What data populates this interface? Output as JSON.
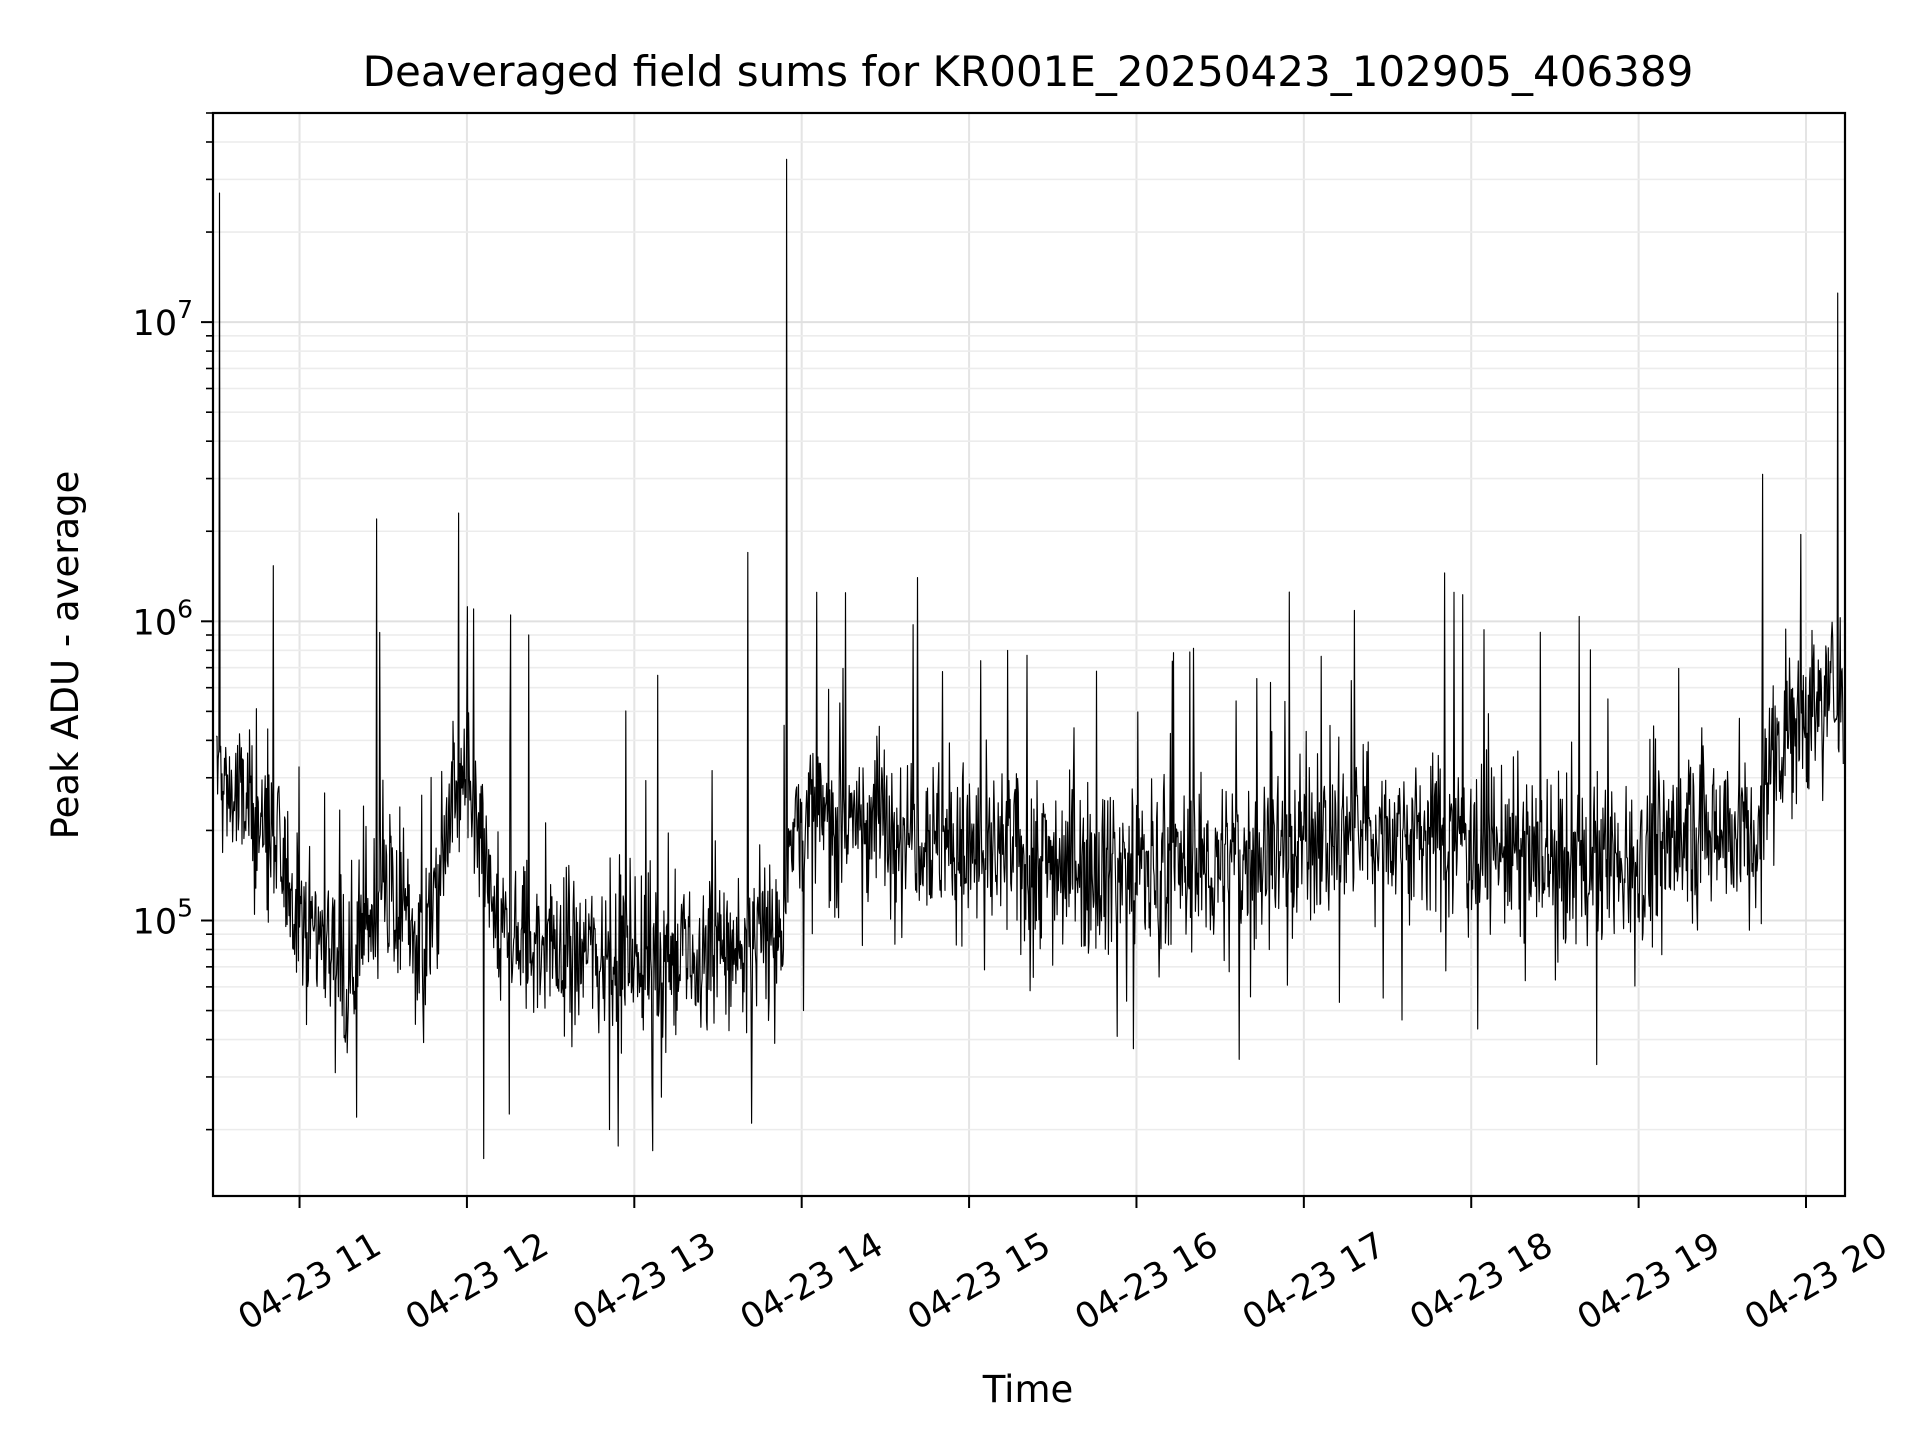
{
  "chart_data": {
    "type": "line",
    "title": "Deaveraged field sums for KR001E_20250423_102905_406389",
    "xlabel": "Time",
    "ylabel": "Peak ADU - average",
    "x_scale": "time",
    "y_scale": "log",
    "xlim": [
      "2025-04-23 10:29",
      "2025-04-23 20:14"
    ],
    "ylim": [
      12000,
      50000000
    ],
    "grid": true,
    "line_color": "#000000",
    "x_ticks": [
      {
        "label": "04-23 11",
        "hour": 11
      },
      {
        "label": "04-23 12",
        "hour": 12
      },
      {
        "label": "04-23 13",
        "hour": 13
      },
      {
        "label": "04-23 14",
        "hour": 14
      },
      {
        "label": "04-23 15",
        "hour": 15
      },
      {
        "label": "04-23 16",
        "hour": 16
      },
      {
        "label": "04-23 17",
        "hour": 17
      },
      {
        "label": "04-23 18",
        "hour": 18
      },
      {
        "label": "04-23 19",
        "hour": 19
      },
      {
        "label": "04-23 20",
        "hour": 20
      }
    ],
    "y_ticks": [
      {
        "base": "10",
        "exp": "5",
        "value": 100000
      },
      {
        "base": "10",
        "exp": "6",
        "value": 1000000
      },
      {
        "base": "10",
        "exp": "7",
        "value": 10000000
      }
    ],
    "series_profile": {
      "x_hours": [
        10.5,
        10.8,
        11.0,
        11.3,
        11.5,
        11.75,
        11.95,
        12.2,
        12.5,
        12.8,
        13.0,
        13.3,
        13.6,
        13.88,
        13.92,
        14.2,
        14.6,
        15.0,
        15.5,
        16.0,
        16.5,
        17.0,
        17.5,
        18.0,
        18.5,
        19.0,
        19.5,
        19.72,
        19.8,
        20.0,
        20.2
      ],
      "y_median": [
        300000,
        200000,
        110000,
        70000,
        130000,
        80000,
        300000,
        90000,
        80000,
        80000,
        80000,
        70000,
        80000,
        90000,
        200000,
        220000,
        220000,
        170000,
        160000,
        150000,
        150000,
        190000,
        200000,
        190000,
        150000,
        160000,
        220000,
        180000,
        400000,
        500000,
        600000
      ]
    },
    "spikes": [
      {
        "x_hour": 10.52,
        "y": 27000000
      },
      {
        "x_hour": 11.46,
        "y": 2200000
      },
      {
        "x_hour": 11.95,
        "y": 2300000
      },
      {
        "x_hour": 12.04,
        "y": 1100000
      },
      {
        "x_hour": 12.26,
        "y": 1050000
      },
      {
        "x_hour": 12.37,
        "y": 900000
      },
      {
        "x_hour": 13.14,
        "y": 660000
      },
      {
        "x_hour": 13.68,
        "y": 1700000
      },
      {
        "x_hour": 13.91,
        "y": 35000000
      },
      {
        "x_hour": 14.09,
        "y": 1250000
      },
      {
        "x_hour": 14.69,
        "y": 1400000
      },
      {
        "x_hour": 17.84,
        "y": 1450000
      },
      {
        "x_hour": 19.74,
        "y": 3100000
      },
      {
        "x_hour": 19.97,
        "y": 1950000
      },
      {
        "x_hour": 20.19,
        "y": 12500000
      }
    ],
    "dips": [
      {
        "x_hour": 12.1,
        "y": 16000
      },
      {
        "x_hour": 13.11,
        "y": 17000
      },
      {
        "x_hour": 12.85,
        "y": 20000
      },
      {
        "x_hour": 11.34,
        "y": 22000
      },
      {
        "x_hour": 13.7,
        "y": 21000
      },
      {
        "x_hour": 18.75,
        "y": 33000
      }
    ]
  }
}
